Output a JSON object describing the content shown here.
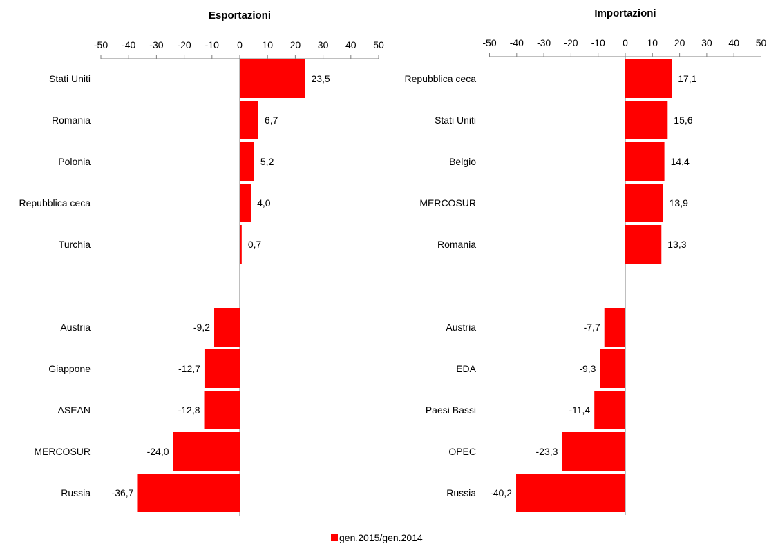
{
  "chart_data": [
    {
      "type": "bar",
      "orientation": "horizontal",
      "title": "Esportazioni",
      "xlim": [
        -50,
        50
      ],
      "ticks": [
        "-50",
        "-40",
        "-30",
        "-20",
        "-10",
        "0",
        "10",
        "20",
        "30",
        "40",
        "50"
      ],
      "grid": false,
      "categories": [
        "Stati Uniti",
        "Romania",
        "Polonia",
        "Repubblica ceca",
        "Turchia",
        "Austria",
        "Giappone",
        "ASEAN",
        "MERCOSUR",
        "Russia"
      ],
      "values": [
        23.5,
        6.7,
        5.2,
        4.0,
        0.7,
        -9.2,
        -12.7,
        -12.8,
        -24.0,
        -36.7
      ],
      "labels": [
        "23,5",
        "6,7",
        "5,2",
        "4,0",
        "0,7",
        "-9,2",
        "-12,7",
        "-12,8",
        "-24,0",
        "-36,7"
      ],
      "color": "#ff0000"
    },
    {
      "type": "bar",
      "orientation": "horizontal",
      "title": "Importazioni",
      "xlim": [
        -50,
        50
      ],
      "ticks": [
        "-50",
        "-40",
        "-30",
        "-20",
        "-10",
        "0",
        "10",
        "20",
        "30",
        "40",
        "50"
      ],
      "grid": false,
      "categories": [
        "Repubblica ceca",
        "Stati Uniti",
        "Belgio",
        "MERCOSUR",
        "Romania",
        "Austria",
        "EDA",
        "Paesi Bassi",
        "OPEC",
        "Russia"
      ],
      "values": [
        17.1,
        15.6,
        14.4,
        13.9,
        13.3,
        -7.7,
        -9.3,
        -11.4,
        -23.3,
        -40.2
      ],
      "labels": [
        "17,1",
        "15,6",
        "14,4",
        "13,9",
        "13,3",
        "-7,7",
        "-9,3",
        "-11,4",
        "-23,3",
        "-40,2"
      ],
      "color": "#ff0000"
    }
  ],
  "legend": {
    "label": "gen.2015/gen.2014",
    "color": "#ff0000",
    "position": "bottom-center"
  }
}
